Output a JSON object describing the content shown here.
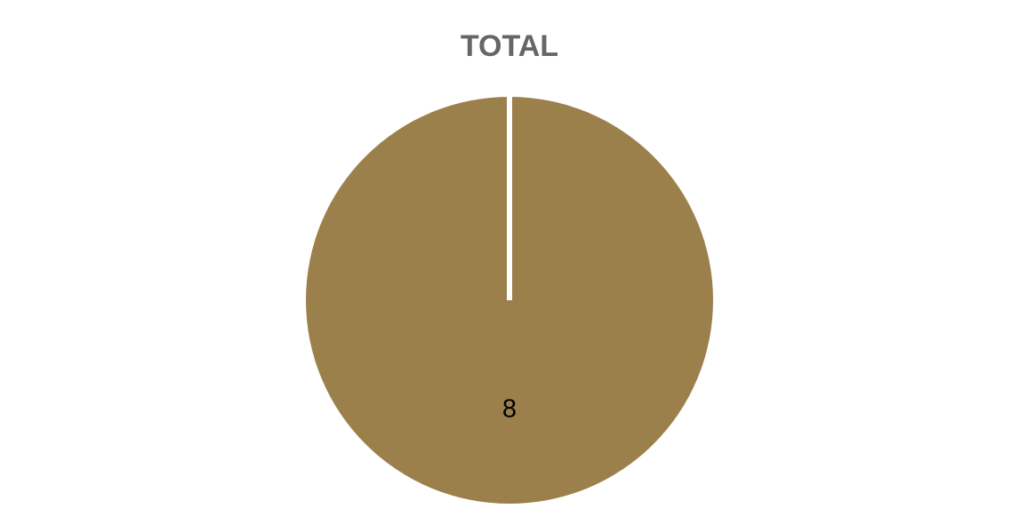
{
  "chart_data": {
    "type": "pie",
    "title": "TOTAL",
    "categories": [
      ""
    ],
    "values": [
      8
    ],
    "data_labels": [
      "8"
    ],
    "colors": [
      "#9c804c"
    ],
    "slice_border_color": "#ffffff",
    "legend": "none"
  }
}
